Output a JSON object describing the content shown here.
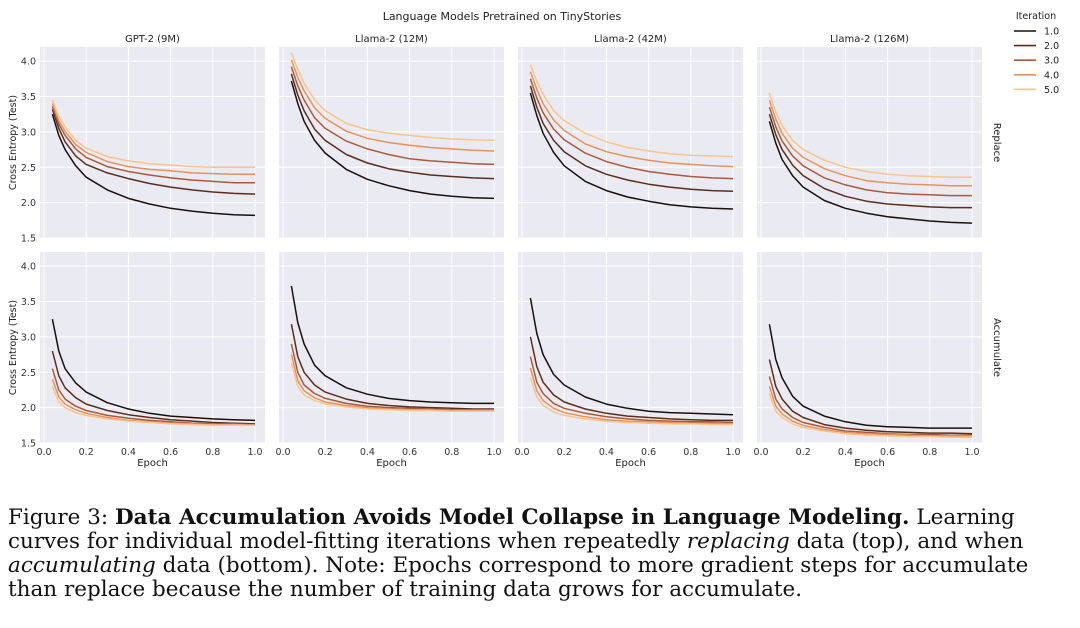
{
  "chart_data": {
    "type": "line",
    "title": "Language Models Pretrained on TinyStories",
    "legend": {
      "title": "Iteration",
      "placement": "top-right-outside",
      "entries": [
        "1.0",
        "2.0",
        "3.0",
        "4.0",
        "5.0"
      ],
      "colors": [
        "#1a0f0b",
        "#5a2e1e",
        "#a95a3c",
        "#e8925a",
        "#fac58c"
      ]
    },
    "columns": [
      "GPT-2 (9M)",
      "Llama-2 (12M)",
      "Llama-2 (42M)",
      "Llama-2 (126M)"
    ],
    "rows": [
      "Replace",
      "Accumulate"
    ],
    "xlabel": "Epoch",
    "ylabel": "Cross Entropy (Test)",
    "xlim": [
      0.0,
      1.0
    ],
    "ylim": [
      1.5,
      4.2
    ],
    "xticks": [
      "0.0",
      "0.2",
      "0.4",
      "0.6",
      "0.8",
      "1.0"
    ],
    "yticks": [
      "1.5",
      "2.0",
      "2.5",
      "3.0",
      "3.5",
      "4.0"
    ],
    "grid": true,
    "x": [
      0.04,
      0.07,
      0.1,
      0.15,
      0.2,
      0.3,
      0.4,
      0.5,
      0.6,
      0.7,
      0.8,
      0.9,
      1.0
    ],
    "panels": [
      {
        "row": "Replace",
        "column": "GPT-2 (9M)",
        "series": [
          {
            "name": "1.0",
            "values": [
              3.25,
              2.95,
              2.75,
              2.52,
              2.36,
              2.18,
              2.06,
              1.98,
              1.92,
              1.88,
              1.85,
              1.83,
              1.82
            ]
          },
          {
            "name": "2.0",
            "values": [
              3.32,
              3.05,
              2.86,
              2.66,
              2.54,
              2.42,
              2.34,
              2.27,
              2.22,
              2.18,
              2.15,
              2.13,
              2.12
            ]
          },
          {
            "name": "3.0",
            "values": [
              3.36,
              3.11,
              2.95,
              2.76,
              2.64,
              2.51,
              2.44,
              2.39,
              2.35,
              2.32,
              2.3,
              2.28,
              2.28
            ]
          },
          {
            "name": "4.0",
            "values": [
              3.4,
              3.16,
              3.01,
              2.82,
              2.71,
              2.58,
              2.51,
              2.47,
              2.45,
              2.42,
              2.41,
              2.4,
              2.4
            ]
          },
          {
            "name": "5.0",
            "values": [
              3.45,
              3.22,
              3.07,
              2.88,
              2.77,
              2.65,
              2.59,
              2.55,
              2.53,
              2.51,
              2.5,
              2.5,
              2.5
            ]
          }
        ]
      },
      {
        "row": "Replace",
        "column": "Llama-2 (12M)",
        "series": [
          {
            "name": "1.0",
            "values": [
              3.72,
              3.4,
              3.15,
              2.88,
              2.7,
              2.47,
              2.33,
              2.24,
              2.17,
              2.12,
              2.09,
              2.07,
              2.06
            ]
          },
          {
            "name": "2.0",
            "values": [
              3.82,
              3.52,
              3.3,
              3.04,
              2.88,
              2.68,
              2.56,
              2.48,
              2.43,
              2.39,
              2.37,
              2.35,
              2.34
            ]
          },
          {
            "name": "3.0",
            "values": [
              3.92,
              3.65,
              3.45,
              3.2,
              3.05,
              2.87,
              2.76,
              2.68,
              2.62,
              2.59,
              2.57,
              2.55,
              2.54
            ]
          },
          {
            "name": "4.0",
            "values": [
              4.02,
              3.77,
              3.58,
              3.34,
              3.19,
              3.01,
              2.91,
              2.85,
              2.81,
              2.78,
              2.76,
              2.74,
              2.73
            ]
          },
          {
            "name": "5.0",
            "values": [
              4.12,
              3.88,
              3.69,
              3.45,
              3.3,
              3.12,
              3.03,
              2.98,
              2.95,
              2.92,
              2.9,
              2.89,
              2.88
            ]
          }
        ]
      },
      {
        "row": "Replace",
        "column": "Llama-2 (42M)",
        "series": [
          {
            "name": "1.0",
            "values": [
              3.55,
              3.23,
              2.98,
              2.71,
              2.52,
              2.3,
              2.17,
              2.08,
              2.02,
              1.97,
              1.94,
              1.92,
              1.91
            ]
          },
          {
            "name": "2.0",
            "values": [
              3.65,
              3.35,
              3.12,
              2.88,
              2.72,
              2.52,
              2.4,
              2.32,
              2.26,
              2.22,
              2.19,
              2.17,
              2.16
            ]
          },
          {
            "name": "3.0",
            "values": [
              3.75,
              3.48,
              3.27,
              3.04,
              2.89,
              2.7,
              2.58,
              2.5,
              2.44,
              2.4,
              2.37,
              2.35,
              2.34
            ]
          },
          {
            "name": "4.0",
            "values": [
              3.85,
              3.6,
              3.4,
              3.17,
              3.02,
              2.83,
              2.72,
              2.65,
              2.6,
              2.56,
              2.54,
              2.52,
              2.51
            ]
          },
          {
            "name": "5.0",
            "values": [
              3.95,
              3.72,
              3.53,
              3.3,
              3.16,
              2.98,
              2.86,
              2.78,
              2.73,
              2.69,
              2.67,
              2.66,
              2.65
            ]
          }
        ]
      },
      {
        "row": "Replace",
        "column": "Llama-2 (126M)",
        "series": [
          {
            "name": "1.0",
            "values": [
              3.15,
              2.84,
              2.61,
              2.38,
              2.22,
              2.03,
              1.92,
              1.85,
              1.8,
              1.77,
              1.74,
              1.72,
              1.71
            ]
          },
          {
            "name": "2.0",
            "values": [
              3.25,
              2.96,
              2.75,
              2.53,
              2.38,
              2.2,
              2.09,
              2.02,
              1.98,
              1.96,
              1.94,
              1.93,
              1.93
            ]
          },
          {
            "name": "3.0",
            "values": [
              3.35,
              3.07,
              2.87,
              2.66,
              2.52,
              2.35,
              2.25,
              2.18,
              2.14,
              2.12,
              2.11,
              2.1,
              2.1
            ]
          },
          {
            "name": "4.0",
            "values": [
              3.45,
              3.18,
              2.98,
              2.77,
              2.64,
              2.48,
              2.38,
              2.31,
              2.28,
              2.26,
              2.25,
              2.24,
              2.24
            ]
          },
          {
            "name": "5.0",
            "values": [
              3.55,
              3.28,
              3.09,
              2.88,
              2.75,
              2.6,
              2.5,
              2.44,
              2.4,
              2.38,
              2.37,
              2.36,
              2.36
            ]
          }
        ]
      },
      {
        "row": "Accumulate",
        "column": "GPT-2 (9M)",
        "series": [
          {
            "name": "1.0",
            "values": [
              3.25,
              2.8,
              2.55,
              2.35,
              2.22,
              2.07,
              1.98,
              1.92,
              1.88,
              1.86,
              1.84,
              1.83,
              1.82
            ]
          },
          {
            "name": "2.0",
            "values": [
              2.8,
              2.45,
              2.28,
              2.14,
              2.05,
              1.96,
              1.9,
              1.86,
              1.83,
              1.81,
              1.79,
              1.78,
              1.77
            ]
          },
          {
            "name": "3.0",
            "values": [
              2.55,
              2.25,
              2.12,
              2.02,
              1.96,
              1.89,
              1.85,
              1.82,
              1.8,
              1.78,
              1.77,
              1.77,
              1.76
            ]
          },
          {
            "name": "4.0",
            "values": [
              2.4,
              2.15,
              2.05,
              1.97,
              1.92,
              1.86,
              1.82,
              1.8,
              1.78,
              1.77,
              1.76,
              1.76,
              1.75
            ]
          },
          {
            "name": "5.0",
            "values": [
              2.3,
              2.08,
              2.0,
              1.93,
              1.89,
              1.84,
              1.81,
              1.79,
              1.77,
              1.76,
              1.75,
              1.75,
              1.75
            ]
          }
        ]
      },
      {
        "row": "Accumulate",
        "column": "Llama-2 (12M)",
        "series": [
          {
            "name": "1.0",
            "values": [
              3.72,
              3.2,
              2.9,
              2.6,
              2.45,
              2.28,
              2.19,
              2.13,
              2.1,
              2.08,
              2.07,
              2.06,
              2.06
            ]
          },
          {
            "name": "2.0",
            "values": [
              3.18,
              2.72,
              2.5,
              2.32,
              2.22,
              2.12,
              2.06,
              2.03,
              2.01,
              2.0,
              1.99,
              1.98,
              1.98
            ]
          },
          {
            "name": "3.0",
            "values": [
              2.9,
              2.5,
              2.32,
              2.2,
              2.13,
              2.06,
              2.02,
              2.0,
              1.99,
              1.98,
              1.97,
              1.97,
              1.97
            ]
          },
          {
            "name": "4.0",
            "values": [
              2.75,
              2.38,
              2.24,
              2.14,
              2.08,
              2.03,
              2.0,
              1.98,
              1.97,
              1.97,
              1.96,
              1.96,
              1.96
            ]
          },
          {
            "name": "5.0",
            "values": [
              2.63,
              2.3,
              2.18,
              2.1,
              2.05,
              2.01,
              1.98,
              1.97,
              1.96,
              1.96,
              1.95,
              1.95,
              1.95
            ]
          }
        ]
      },
      {
        "row": "Accumulate",
        "column": "Llama-2 (42M)",
        "series": [
          {
            "name": "1.0",
            "values": [
              3.55,
              3.05,
              2.75,
              2.47,
              2.32,
              2.15,
              2.05,
              1.99,
              1.95,
              1.93,
              1.92,
              1.91,
              1.9
            ]
          },
          {
            "name": "2.0",
            "values": [
              3.0,
              2.58,
              2.36,
              2.18,
              2.08,
              1.98,
              1.92,
              1.88,
              1.86,
              1.84,
              1.83,
              1.82,
              1.82
            ]
          },
          {
            "name": "3.0",
            "values": [
              2.72,
              2.36,
              2.2,
              2.06,
              1.99,
              1.92,
              1.87,
              1.84,
              1.82,
              1.81,
              1.8,
              1.8,
              1.79
            ]
          },
          {
            "name": "4.0",
            "values": [
              2.56,
              2.24,
              2.1,
              1.99,
              1.93,
              1.87,
              1.83,
              1.81,
              1.8,
              1.79,
              1.78,
              1.78,
              1.77
            ]
          },
          {
            "name": "5.0",
            "values": [
              2.42,
              2.15,
              2.03,
              1.94,
              1.89,
              1.84,
              1.81,
              1.79,
              1.78,
              1.77,
              1.77,
              1.76,
              1.76
            ]
          }
        ]
      },
      {
        "row": "Accumulate",
        "column": "Llama-2 (126M)",
        "series": [
          {
            "name": "1.0",
            "values": [
              3.18,
              2.68,
              2.42,
              2.16,
              2.02,
              1.88,
              1.8,
              1.75,
              1.73,
              1.72,
              1.71,
              1.71,
              1.71
            ]
          },
          {
            "name": "2.0",
            "values": [
              2.68,
              2.3,
              2.12,
              1.95,
              1.86,
              1.76,
              1.71,
              1.68,
              1.66,
              1.65,
              1.64,
              1.64,
              1.63
            ]
          },
          {
            "name": "3.0",
            "values": [
              2.44,
              2.12,
              1.98,
              1.86,
              1.79,
              1.72,
              1.67,
              1.65,
              1.63,
              1.62,
              1.62,
              1.61,
              1.61
            ]
          },
          {
            "name": "4.0",
            "values": [
              2.3,
              2.02,
              1.91,
              1.81,
              1.75,
              1.69,
              1.65,
              1.63,
              1.62,
              1.61,
              1.6,
              1.6,
              1.6
            ]
          },
          {
            "name": "5.0",
            "values": [
              2.2,
              1.95,
              1.86,
              1.77,
              1.72,
              1.67,
              1.63,
              1.61,
              1.6,
              1.59,
              1.59,
              1.58,
              1.58
            ]
          }
        ]
      }
    ]
  },
  "caption": {
    "label": "Figure 3:",
    "bold": "Data Accumulation Avoids Model Collapse in Language Modeling.",
    "part1": "Learning curves for individual model-fitting iterations when repeatedly",
    "em1": "replacing",
    "part2": "data (top), and when",
    "em2": "accumulating",
    "part3": "data (bottom). Note: Epochs correspond to more gradient steps for accumulate than replace because the number of training data grows for accumulate."
  }
}
